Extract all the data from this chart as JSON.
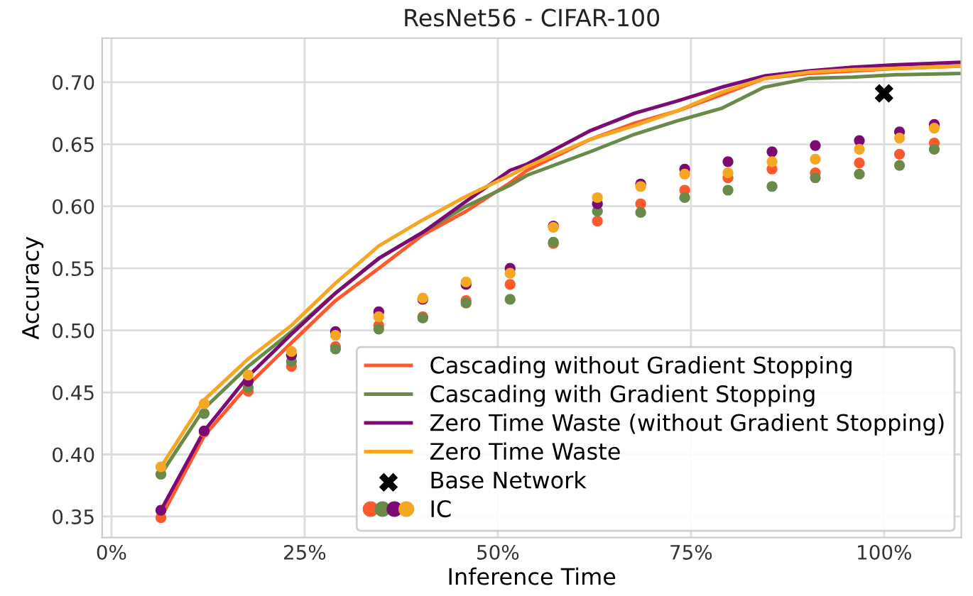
{
  "chart_data": {
    "type": "line",
    "title": "ResNet56 - CIFAR-100",
    "xlabel": "Inference Time",
    "ylabel": "Accuracy",
    "xlim": [
      -1.2,
      110
    ],
    "ylim": [
      0.333,
      0.7355
    ],
    "xticks": [
      {
        "value": 0,
        "label": "0%"
      },
      {
        "value": 25,
        "label": "25%"
      },
      {
        "value": 50,
        "label": "50%"
      },
      {
        "value": 75,
        "label": "75%"
      },
      {
        "value": 100,
        "label": "100%"
      }
    ],
    "yticks": [
      {
        "value": 0.35,
        "label": "0.35"
      },
      {
        "value": 0.4,
        "label": "0.40"
      },
      {
        "value": 0.45,
        "label": "0.45"
      },
      {
        "value": 0.5,
        "label": "0.50"
      },
      {
        "value": 0.55,
        "label": "0.55"
      },
      {
        "value": 0.6,
        "label": "0.60"
      },
      {
        "value": 0.65,
        "label": "0.65"
      },
      {
        "value": 0.7,
        "label": "0.70"
      }
    ],
    "grid": true,
    "legend": "bottom right",
    "series": [
      {
        "name": "Cascading without Gradient Stopping",
        "color": "#fc5a2d",
        "x": [
          6.4,
          12.0,
          17.7,
          23.3,
          29.0,
          34.6,
          40.3,
          45.9,
          51.6,
          53.8,
          62.0,
          67.7,
          73.3,
          79.0,
          84.5,
          90.2,
          95.9,
          101.6,
          110.0
        ],
        "values": [
          0.349,
          0.415,
          0.456,
          0.49,
          0.524,
          0.55,
          0.577,
          0.596,
          0.619,
          0.629,
          0.654,
          0.667,
          0.677,
          0.69,
          0.703,
          0.707,
          0.709,
          0.711,
          0.713
        ]
      },
      {
        "name": "Cascading with Gradient Stopping",
        "color": "#6a8a4a",
        "x": [
          6.4,
          12.0,
          17.7,
          23.3,
          29.0,
          34.6,
          40.3,
          45.9,
          51.6,
          53.8,
          62.0,
          67.7,
          73.3,
          79.0,
          84.5,
          90.2,
          95.9,
          101.6,
          110.0
        ],
        "values": [
          0.384,
          0.437,
          0.471,
          0.499,
          0.53,
          0.558,
          0.579,
          0.6,
          0.617,
          0.625,
          0.644,
          0.658,
          0.669,
          0.679,
          0.696,
          0.703,
          0.704,
          0.706,
          0.707
        ]
      },
      {
        "name": "Zero Time Waste (without Gradient Stopping)",
        "color": "#7b0a72",
        "x": [
          6.4,
          12.0,
          17.7,
          23.3,
          29.0,
          34.6,
          40.3,
          45.9,
          51.6,
          53.8,
          62.0,
          67.7,
          73.3,
          79.0,
          84.5,
          90.2,
          95.9,
          101.6,
          110.0
        ],
        "values": [
          0.355,
          0.419,
          0.463,
          0.497,
          0.53,
          0.558,
          0.579,
          0.604,
          0.629,
          0.634,
          0.661,
          0.675,
          0.685,
          0.696,
          0.705,
          0.709,
          0.712,
          0.714,
          0.716
        ]
      },
      {
        "name": "Zero Time Waste",
        "color": "#f5a623",
        "x": [
          6.4,
          12.0,
          17.7,
          23.3,
          29.0,
          34.6,
          40.3,
          45.9,
          51.6,
          53.8,
          62.0,
          67.7,
          73.3,
          79.0,
          84.5,
          90.2,
          95.9,
          101.6,
          110.0
        ],
        "values": [
          0.39,
          0.444,
          0.477,
          0.504,
          0.538,
          0.568,
          0.589,
          0.608,
          0.625,
          0.632,
          0.654,
          0.665,
          0.677,
          0.692,
          0.703,
          0.708,
          0.71,
          0.711,
          0.713
        ]
      },
      {
        "type": "scatter",
        "name": "Base Network",
        "color": "#000000",
        "marker": "cross",
        "x": [
          100
        ],
        "values": [
          0.691
        ]
      },
      {
        "type": "scatter",
        "name": "IC",
        "marker": "circle",
        "x": [
          6.4,
          12.0,
          17.7,
          23.3,
          29.0,
          34.6,
          40.3,
          45.9,
          51.6,
          57.2,
          62.9,
          68.5,
          74.2,
          79.8,
          85.5,
          91.1,
          96.8,
          102.0,
          106.5,
          6.4,
          12.0,
          17.7,
          23.3,
          29.0,
          34.6,
          40.3,
          45.9,
          51.6,
          57.2,
          62.9,
          68.5,
          74.2,
          79.8,
          85.5,
          91.1,
          96.8,
          102.0,
          106.5,
          6.4,
          12.0,
          17.7,
          23.3,
          29.0,
          34.6,
          40.3,
          45.9,
          51.6,
          57.2,
          62.9,
          68.5,
          74.2,
          79.8,
          85.5,
          91.1,
          96.8,
          102.0,
          106.5,
          6.4,
          12.0,
          17.7,
          23.3,
          29.0,
          34.6,
          40.3,
          45.9,
          51.6,
          57.2,
          62.9,
          68.5,
          74.2,
          79.8,
          85.5,
          91.1,
          96.8,
          102.0,
          106.5
        ],
        "values": [
          0.349,
          0.418,
          0.451,
          0.471,
          0.487,
          0.504,
          0.511,
          0.524,
          0.537,
          0.57,
          0.588,
          0.602,
          0.613,
          0.623,
          0.63,
          0.627,
          0.635,
          0.642,
          0.651,
          0.384,
          0.433,
          0.454,
          0.475,
          0.485,
          0.501,
          0.51,
          0.522,
          0.525,
          0.571,
          0.596,
          0.595,
          0.607,
          0.613,
          0.616,
          0.623,
          0.626,
          0.633,
          0.646,
          0.355,
          0.419,
          0.459,
          0.48,
          0.499,
          0.515,
          0.525,
          0.537,
          0.55,
          0.584,
          0.602,
          0.618,
          0.63,
          0.636,
          0.644,
          0.649,
          0.653,
          0.66,
          0.666,
          0.39,
          0.441,
          0.464,
          0.483,
          0.496,
          0.511,
          0.526,
          0.539,
          0.546,
          0.583,
          0.607,
          0.616,
          0.626,
          0.627,
          0.636,
          0.638,
          0.646,
          0.655,
          0.663
        ],
        "colors": [
          "#fc5a2d",
          "#fc5a2d",
          "#fc5a2d",
          "#fc5a2d",
          "#fc5a2d",
          "#fc5a2d",
          "#fc5a2d",
          "#fc5a2d",
          "#fc5a2d",
          "#fc5a2d",
          "#fc5a2d",
          "#fc5a2d",
          "#fc5a2d",
          "#fc5a2d",
          "#fc5a2d",
          "#fc5a2d",
          "#fc5a2d",
          "#fc5a2d",
          "#fc5a2d",
          "#6a8a4a",
          "#6a8a4a",
          "#6a8a4a",
          "#6a8a4a",
          "#6a8a4a",
          "#6a8a4a",
          "#6a8a4a",
          "#6a8a4a",
          "#6a8a4a",
          "#6a8a4a",
          "#6a8a4a",
          "#6a8a4a",
          "#6a8a4a",
          "#6a8a4a",
          "#6a8a4a",
          "#6a8a4a",
          "#6a8a4a",
          "#6a8a4a",
          "#6a8a4a",
          "#7b0a72",
          "#7b0a72",
          "#7b0a72",
          "#7b0a72",
          "#7b0a72",
          "#7b0a72",
          "#7b0a72",
          "#7b0a72",
          "#7b0a72",
          "#7b0a72",
          "#7b0a72",
          "#7b0a72",
          "#7b0a72",
          "#7b0a72",
          "#7b0a72",
          "#7b0a72",
          "#7b0a72",
          "#7b0a72",
          "#7b0a72",
          "#f5a623",
          "#f5a623",
          "#f5a623",
          "#f5a623",
          "#f5a623",
          "#f5a623",
          "#f5a623",
          "#f5a623",
          "#f5a623",
          "#f5a623",
          "#f5a623",
          "#f5a623",
          "#f5a623",
          "#f5a623",
          "#f5a623",
          "#f5a623",
          "#f5a623",
          "#f5a623",
          "#f5a623"
        ]
      }
    ]
  }
}
